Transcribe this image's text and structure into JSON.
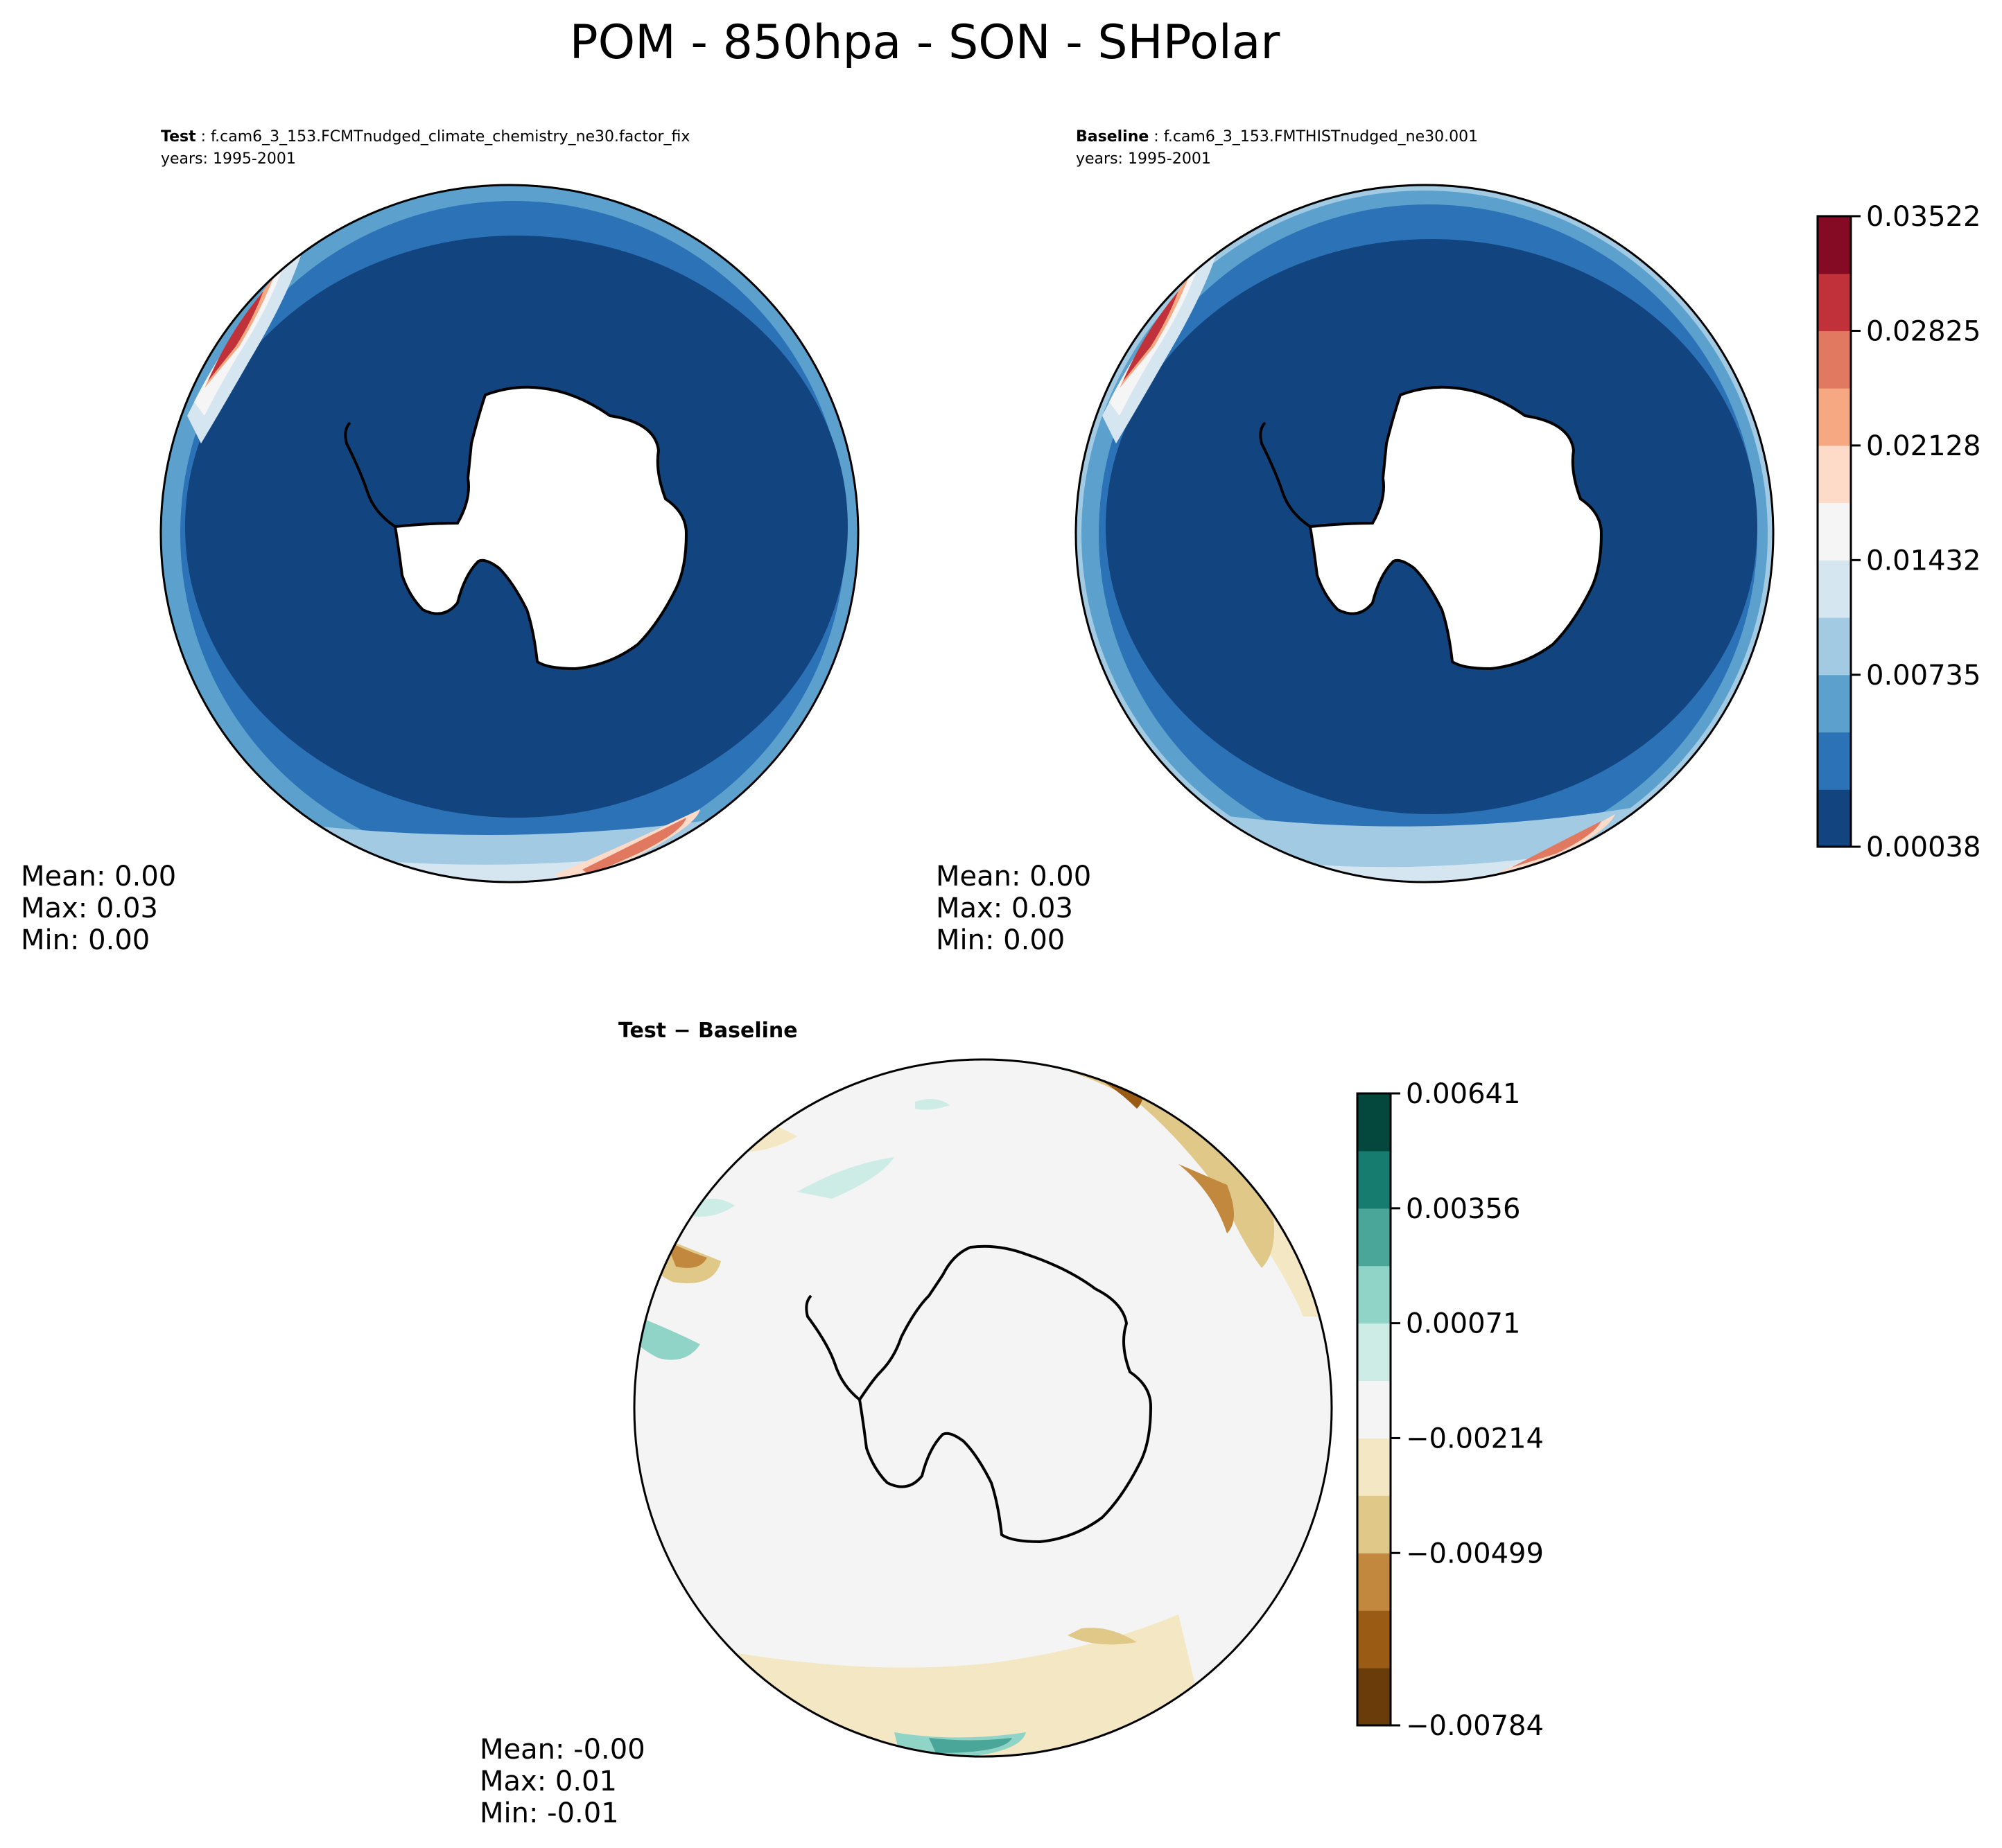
{
  "figure": {
    "title": "POM - 850hpa - SON - SHPolar"
  },
  "panels": {
    "test": {
      "label": "Test",
      "case": "f.cam6_3_153.FCMTnudged_climate_chemistry_ne30.factor_fix",
      "years": "years: 1995-2001",
      "stats": [
        "Mean:  0.00",
        "Max:  0.03",
        "Min:  0.00"
      ]
    },
    "baseline": {
      "label": "Baseline",
      "case": "f.cam6_3_153.FMTHISTnudged_ne30.001",
      "years": "years: 1995-2001",
      "stats": [
        "Mean:  0.00",
        "Max:  0.03",
        "Min:  0.00"
      ]
    },
    "diff": {
      "title": "Test − Baseline",
      "stats": [
        "Mean: -0.00",
        "Max:  0.01",
        "Min: -0.01"
      ]
    }
  },
  "colorbars": {
    "main": {
      "tick_labels": [
        "0.03522",
        "0.02825",
        "0.02128",
        "0.01432",
        "0.00735",
        "0.00038"
      ],
      "colors": [
        "#12447f",
        "#2c72b6",
        "#5ca1cd",
        "#a2cae2",
        "#d5e6f1",
        "#f5f5f5",
        "#fddbc8",
        "#f6a883",
        "#e17860",
        "#c13139",
        "#850b25"
      ]
    },
    "diff": {
      "tick_labels": [
        "0.00641",
        "0.00356",
        "0.00071",
        "−0.00214",
        "−0.00499",
        "−0.00784"
      ],
      "colors": [
        "#6a3c0a",
        "#9a5b15",
        "#c2893e",
        "#e0c888",
        "#f4e7c4",
        "#f3f4f3",
        "#cdece6",
        "#8fd4c7",
        "#4aa699",
        "#167c70",
        "#03473d"
      ]
    }
  },
  "map_colors": {
    "land": "#ffffff",
    "coast": "#000000",
    "diff_background": "#f3f4f3"
  }
}
